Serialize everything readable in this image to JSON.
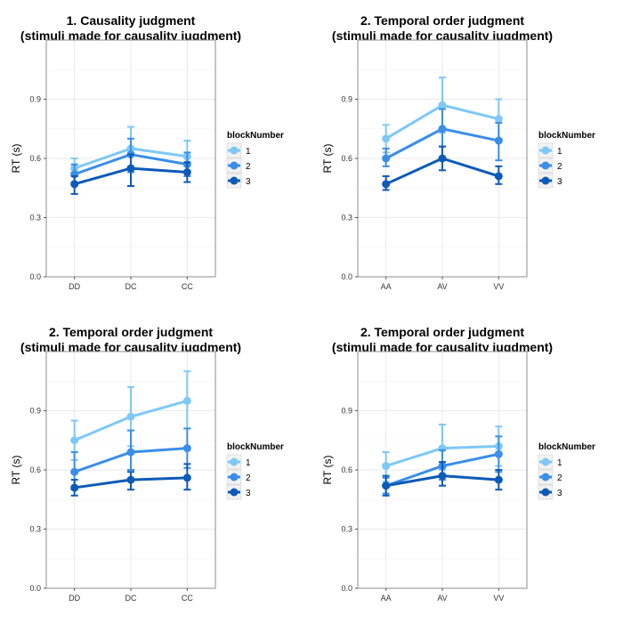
{
  "chart_data": [
    {
      "type": "line",
      "title": "1. Causality judgment",
      "subtitle": "(stimuli made for causality jugdment)",
      "xlabel": "",
      "ylabel": "RT (s)",
      "categories": [
        "DD",
        "DC",
        "CC"
      ],
      "ylim": [
        0,
        1.2
      ],
      "yticks": [
        0.0,
        0.3,
        0.6,
        0.9
      ],
      "ytick_labels": [
        "0.0",
        "0.3",
        "0.6",
        "0.9"
      ],
      "grid": true,
      "legend_title": "blockNumber",
      "legend_position": "right",
      "series": [
        {
          "name": "1",
          "color": "#7ec8f8",
          "values": [
            0.55,
            0.65,
            0.61
          ],
          "err_low": [
            0.51,
            0.54,
            0.53
          ],
          "err_high": [
            0.6,
            0.76,
            0.69
          ]
        },
        {
          "name": "2",
          "color": "#3a8ee8",
          "values": [
            0.52,
            0.62,
            0.57
          ],
          "err_low": [
            0.47,
            0.53,
            0.51
          ],
          "err_high": [
            0.57,
            0.7,
            0.63
          ]
        },
        {
          "name": "3",
          "color": "#0c5ab8",
          "values": [
            0.47,
            0.55,
            0.53
          ],
          "err_low": [
            0.42,
            0.46,
            0.48
          ],
          "err_high": [
            0.51,
            0.62,
            0.58
          ]
        }
      ]
    },
    {
      "type": "line",
      "title": "2. Temporal order judgment",
      "subtitle": "(stimuli made for causality jugdment)",
      "xlabel": "",
      "ylabel": "RT (s)",
      "categories": [
        "AA",
        "AV",
        "VV"
      ],
      "ylim": [
        0,
        1.2
      ],
      "yticks": [
        0.0,
        0.3,
        0.6,
        0.9
      ],
      "ytick_labels": [
        "0.0",
        "0.3",
        "0.6",
        "0.9"
      ],
      "grid": true,
      "legend_title": "blockNumber",
      "legend_position": "right",
      "series": [
        {
          "name": "1",
          "color": "#7ec8f8",
          "values": [
            0.7,
            0.87,
            0.8
          ],
          "err_low": [
            0.63,
            0.73,
            0.7
          ],
          "err_high": [
            0.77,
            1.01,
            0.9
          ]
        },
        {
          "name": "2",
          "color": "#3a8ee8",
          "values": [
            0.6,
            0.75,
            0.69
          ],
          "err_low": [
            0.56,
            0.66,
            0.59
          ],
          "err_high": [
            0.65,
            0.85,
            0.78
          ]
        },
        {
          "name": "3",
          "color": "#0c5ab8",
          "values": [
            0.47,
            0.6,
            0.51
          ],
          "err_low": [
            0.44,
            0.54,
            0.47
          ],
          "err_high": [
            0.51,
            0.66,
            0.56
          ]
        }
      ]
    },
    {
      "type": "line",
      "title": "2. Temporal order judgment",
      "subtitle": "(stimuli made for causality jugdment)",
      "xlabel": "",
      "ylabel": "RT (s)",
      "categories": [
        "DD",
        "DC",
        "CC"
      ],
      "ylim": [
        0,
        1.2
      ],
      "yticks": [
        0.0,
        0.3,
        0.6,
        0.9
      ],
      "ytick_labels": [
        "0.0",
        "0.3",
        "0.6",
        "0.9"
      ],
      "grid": true,
      "legend_title": "blockNumber",
      "legend_position": "right",
      "series": [
        {
          "name": "1",
          "color": "#7ec8f8",
          "values": [
            0.75,
            0.87,
            0.95
          ],
          "err_low": [
            0.65,
            0.72,
            0.81
          ],
          "err_high": [
            0.85,
            1.02,
            1.1
          ]
        },
        {
          "name": "2",
          "color": "#3a8ee8",
          "values": [
            0.59,
            0.69,
            0.71
          ],
          "err_low": [
            0.5,
            0.6,
            0.61
          ],
          "err_high": [
            0.69,
            0.8,
            0.81
          ]
        },
        {
          "name": "3",
          "color": "#0c5ab8",
          "values": [
            0.51,
            0.55,
            0.56
          ],
          "err_low": [
            0.47,
            0.5,
            0.5
          ],
          "err_high": [
            0.55,
            0.59,
            0.63
          ]
        }
      ]
    },
    {
      "type": "line",
      "title": "2. Temporal order judgment",
      "subtitle": "(stimuli made for causality jugdment)",
      "xlabel": "",
      "ylabel": "RT (s)",
      "categories": [
        "AA",
        "AV",
        "VV"
      ],
      "ylim": [
        0,
        1.2
      ],
      "yticks": [
        0.0,
        0.3,
        0.6,
        0.9
      ],
      "ytick_labels": [
        "0.0",
        "0.3",
        "0.6",
        "0.9"
      ],
      "grid": true,
      "legend_title": "blockNumber",
      "legend_position": "right",
      "series": [
        {
          "name": "1",
          "color": "#7ec8f8",
          "values": [
            0.62,
            0.71,
            0.72
          ],
          "err_low": [
            0.54,
            0.6,
            0.62
          ],
          "err_high": [
            0.69,
            0.83,
            0.82
          ]
        },
        {
          "name": "2",
          "color": "#3a8ee8",
          "values": [
            0.52,
            0.62,
            0.68
          ],
          "err_low": [
            0.48,
            0.55,
            0.59
          ],
          "err_high": [
            0.56,
            0.7,
            0.77
          ]
        },
        {
          "name": "3",
          "color": "#0c5ab8",
          "values": [
            0.52,
            0.57,
            0.55
          ],
          "err_low": [
            0.47,
            0.52,
            0.5
          ],
          "err_high": [
            0.57,
            0.64,
            0.6
          ]
        }
      ]
    }
  ]
}
